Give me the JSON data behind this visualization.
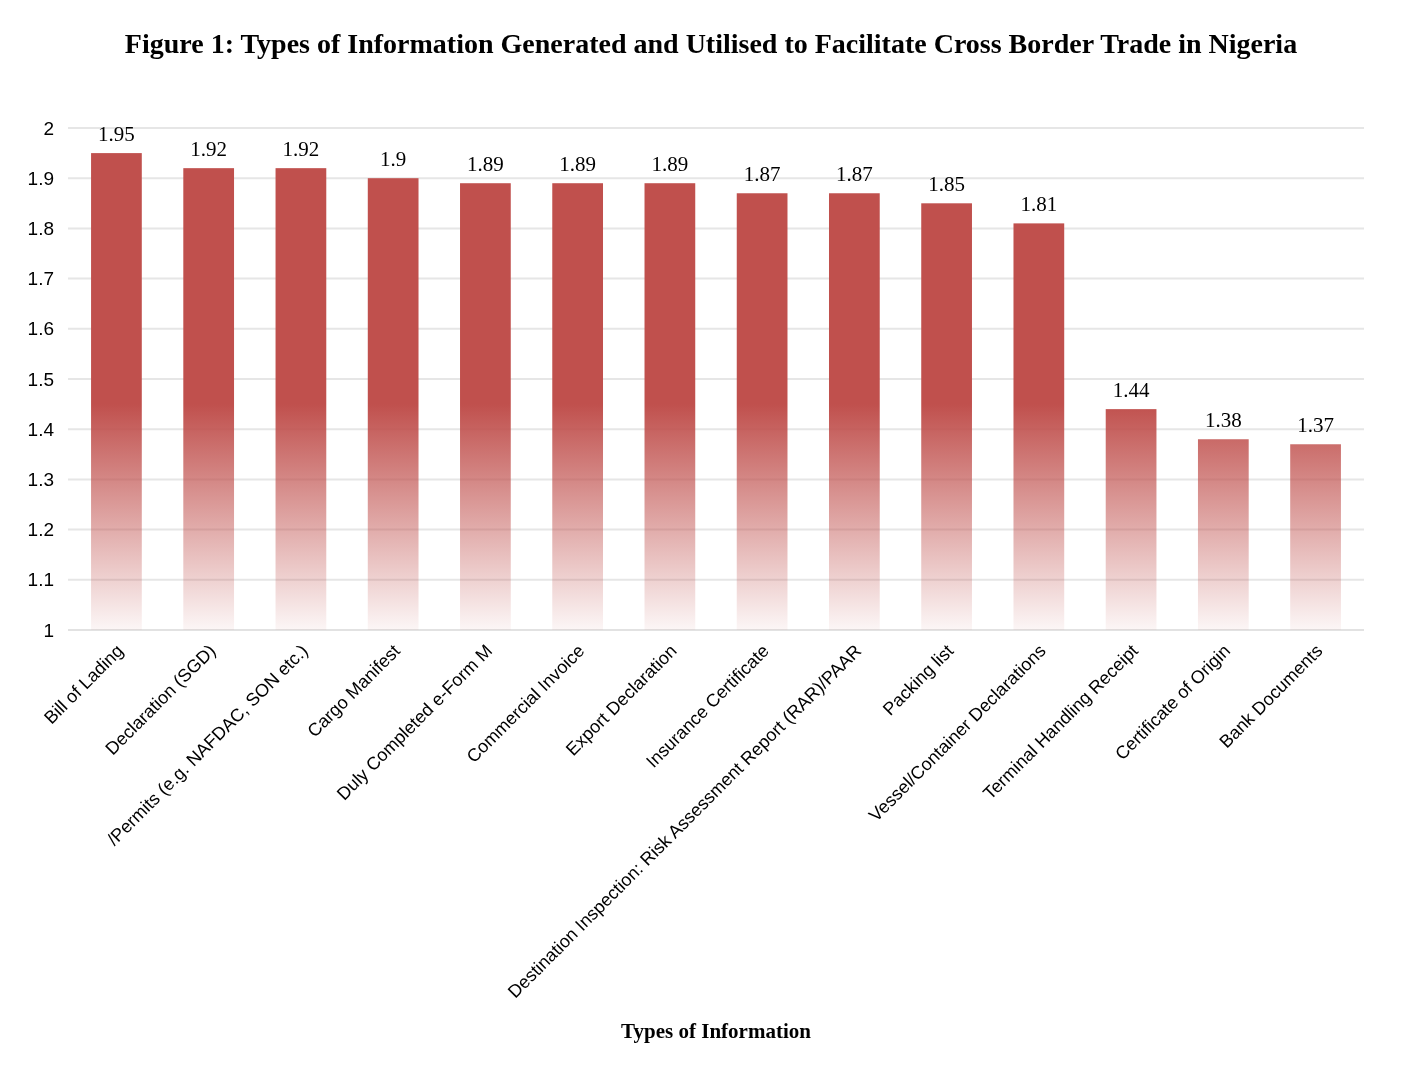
{
  "chart_data": {
    "type": "bar",
    "title": "Figure 1: Types of Information Generated and Utilised to Facilitate Cross Border Trade in Nigeria",
    "xlabel": "Types of Information",
    "categories": [
      "Bill of Lading",
      "Declaration (SGD)",
      "/Permits (e.g. NAFDAC, SON etc.)",
      "Cargo Manifest",
      "Duly Completed e-Form M",
      "Commercial Invoice",
      "Export Declaration",
      "Insurance Certificate",
      "Destination Inspection: Risk Assessment Report (RAR)/PAAR",
      "Packing list",
      "Vessel/Container Declarations",
      "Terminal Handling Receipt",
      "Certificate of Origin",
      "Bank Documents"
    ],
    "values": [
      1.95,
      1.92,
      1.92,
      1.9,
      1.89,
      1.89,
      1.89,
      1.87,
      1.87,
      1.85,
      1.81,
      1.44,
      1.38,
      1.37
    ],
    "color": "#c0504d",
    "ylim": [
      1,
      2
    ],
    "yticks": [
      1,
      1.1,
      1.2,
      1.3,
      1.4,
      1.5,
      1.6,
      1.7,
      1.8,
      1.9,
      2
    ],
    "grid": "y",
    "data_labels": true
  }
}
